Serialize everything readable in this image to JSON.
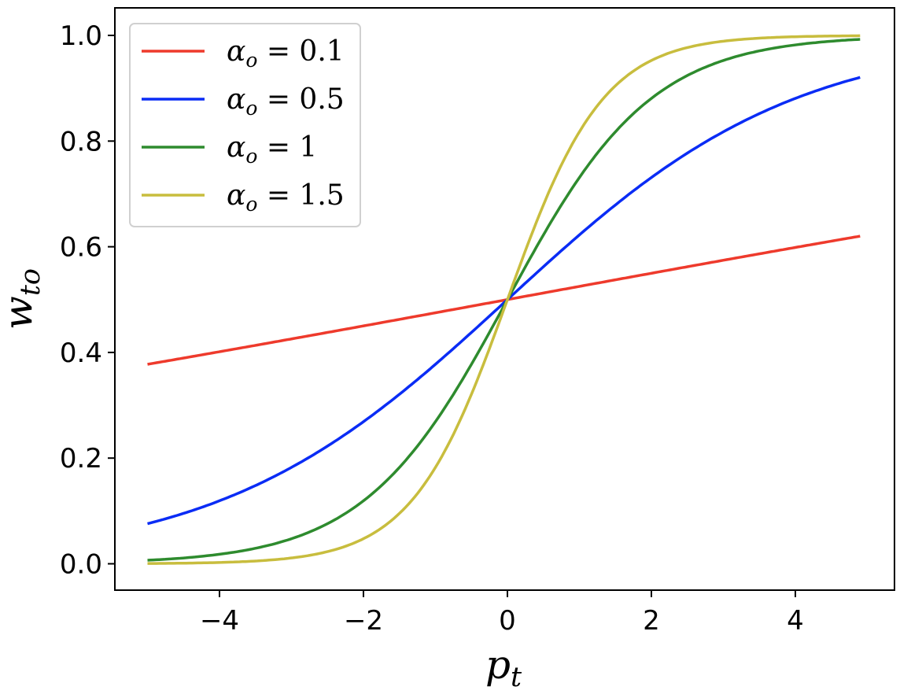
{
  "chart_data": {
    "type": "line",
    "xlabel": {
      "base": "p",
      "sub": "t"
    },
    "ylabel": {
      "base": "w",
      "sub": "to"
    },
    "xlim": [
      -5.5,
      5.4
    ],
    "ylim": [
      -0.05,
      1.05
    ],
    "x_ticks": [
      -4,
      -2,
      0,
      2,
      4
    ],
    "x_tick_labels": [
      "−4",
      "−2",
      "0",
      "2",
      "4"
    ],
    "y_ticks": [
      0.0,
      0.2,
      0.4,
      0.6,
      0.8,
      1.0
    ],
    "y_tick_labels": [
      "0.0",
      "0.2",
      "0.4",
      "0.6",
      "0.8",
      "1.0"
    ],
    "grid": false,
    "legend_position": "top-left",
    "series": [
      {
        "name": "α_o = 0.1",
        "legend": {
          "symbol": "α",
          "sub": "o",
          "value": "0.1"
        },
        "color": "#ee3a2c",
        "x": [
          -5.0,
          -4.0,
          -3.0,
          -2.0,
          -1.0,
          0.0,
          1.0,
          2.0,
          3.0,
          4.0,
          4.9
        ],
        "y": [
          0.378,
          0.401,
          0.426,
          0.45,
          0.475,
          0.5,
          0.525,
          0.55,
          0.574,
          0.599,
          0.62
        ]
      },
      {
        "name": "α_o = 0.5",
        "legend": {
          "symbol": "α",
          "sub": "o",
          "value": "0.5"
        },
        "color": "#0a2cf5",
        "x": [
          -5.0,
          -4.0,
          -3.0,
          -2.0,
          -1.0,
          0.0,
          1.0,
          2.0,
          3.0,
          4.0,
          4.9
        ],
        "y": [
          0.076,
          0.119,
          0.182,
          0.269,
          0.378,
          0.5,
          0.622,
          0.731,
          0.818,
          0.881,
          0.921
        ]
      },
      {
        "name": "α_o = 1",
        "legend": {
          "symbol": "α",
          "sub": "o",
          "value": "1"
        },
        "color": "#2e8b2e",
        "x": [
          -5.0,
          -4.0,
          -3.0,
          -2.5,
          -2.0,
          -1.5,
          -1.0,
          -0.5,
          0.0,
          0.5,
          1.0,
          1.5,
          2.0,
          2.5,
          3.0,
          4.0,
          4.9
        ],
        "y": [
          0.007,
          0.018,
          0.047,
          0.076,
          0.119,
          0.182,
          0.269,
          0.378,
          0.5,
          0.622,
          0.731,
          0.818,
          0.881,
          0.924,
          0.953,
          0.982,
          0.993
        ]
      },
      {
        "name": "α_o = 1.5",
        "legend": {
          "symbol": "α",
          "sub": "o",
          "value": "1.5"
        },
        "color": "#c8bd3e",
        "x": [
          -5.0,
          -4.0,
          -3.0,
          -2.5,
          -2.0,
          -1.5,
          -1.0,
          -0.5,
          0.0,
          0.5,
          1.0,
          1.5,
          2.0,
          2.5,
          3.0,
          4.0,
          4.9
        ],
        "y": [
          0.001,
          0.002,
          0.011,
          0.023,
          0.047,
          0.095,
          0.182,
          0.321,
          0.5,
          0.679,
          0.818,
          0.905,
          0.953,
          0.977,
          0.989,
          0.998,
          0.999
        ]
      }
    ]
  }
}
